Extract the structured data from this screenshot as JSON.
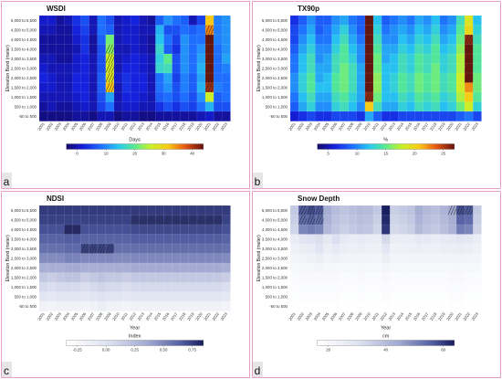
{
  "shared": {
    "ylabel": "Elevation Band (meter)",
    "xlabel": "Year",
    "years": [
      "2001",
      "2002",
      "2003",
      "2004",
      "2005",
      "2006",
      "2007",
      "2008",
      "2009",
      "2010",
      "2011",
      "2012",
      "2013",
      "2014",
      "2015",
      "2016",
      "2017",
      "2018",
      "2019",
      "2020",
      "2021",
      "2022",
      "2023"
    ],
    "bands": [
      "5,000 to 5,500",
      "4,500 to 5,000",
      "4,000 to 4,500",
      "3,500 to 4,000",
      "3,000 to 3,500",
      "2,500 to 3,000",
      "2,000 to 2,500",
      "1,500 to 2,000",
      "1,000 to 1,500",
      "500 to 1,000",
      "-50 to 500"
    ]
  },
  "chart_data": [
    {
      "panel": "a",
      "type": "heatmap",
      "title": "WSDI",
      "legend_title": "Days",
      "ticks": [
        "0",
        "10",
        "20",
        "30",
        "40"
      ],
      "range": [
        0,
        40
      ],
      "colormap": "ncl",
      "hatched": [
        [
          8,
          3
        ],
        [
          8,
          4
        ],
        [
          8,
          5
        ],
        [
          8,
          6
        ],
        [
          8,
          7
        ],
        [
          20,
          1
        ],
        [
          20,
          2
        ],
        [
          20,
          3
        ],
        [
          20,
          4
        ],
        [
          20,
          5
        ],
        [
          20,
          6
        ],
        [
          20,
          7
        ]
      ],
      "values": [
        [
          4,
          4,
          2,
          3,
          6,
          8,
          3,
          10,
          8,
          3,
          4,
          5,
          3,
          2,
          9,
          12,
          10,
          9,
          3,
          7,
          30,
          11,
          12
        ],
        [
          3,
          3,
          2,
          2,
          5,
          7,
          3,
          10,
          9,
          3,
          4,
          4,
          3,
          3,
          14,
          8,
          8,
          10,
          9,
          10,
          33,
          11,
          12
        ],
        [
          2,
          2,
          2,
          2,
          4,
          6,
          2,
          9,
          21,
          3,
          4,
          4,
          3,
          2,
          15,
          10,
          7,
          12,
          10,
          10,
          40,
          11,
          12
        ],
        [
          2,
          2,
          2,
          2,
          3,
          6,
          2,
          8,
          22,
          3,
          3,
          4,
          3,
          2,
          17,
          9,
          6,
          12,
          10,
          12,
          40,
          10,
          12
        ],
        [
          3,
          3,
          2,
          2,
          4,
          5,
          3,
          8,
          25,
          3,
          4,
          5,
          4,
          3,
          16,
          20,
          8,
          12,
          10,
          13,
          40,
          10,
          13
        ],
        [
          4,
          3,
          3,
          3,
          4,
          5,
          3,
          8,
          26,
          3,
          5,
          5,
          4,
          3,
          17,
          18,
          8,
          12,
          10,
          14,
          40,
          10,
          11
        ],
        [
          5,
          4,
          3,
          3,
          5,
          5,
          3,
          9,
          27,
          4,
          6,
          5,
          5,
          3,
          10,
          13,
          7,
          11,
          9,
          13,
          40,
          10,
          10
        ],
        [
          4,
          4,
          3,
          3,
          5,
          5,
          3,
          9,
          30,
          3,
          6,
          5,
          5,
          3,
          10,
          12,
          8,
          11,
          9,
          14,
          38,
          11,
          10
        ],
        [
          3,
          3,
          3,
          3,
          4,
          5,
          3,
          8,
          13,
          3,
          5,
          5,
          4,
          3,
          9,
          10,
          8,
          10,
          8,
          12,
          25,
          9,
          10
        ],
        [
          2,
          3,
          2,
          2,
          3,
          4,
          3,
          7,
          10,
          3,
          4,
          4,
          3,
          3,
          6,
          8,
          6,
          8,
          7,
          10,
          14,
          8,
          8
        ],
        [
          1,
          1,
          1,
          1,
          2,
          2,
          1,
          3,
          3,
          1,
          2,
          2,
          1,
          1,
          2,
          2,
          2,
          2,
          2,
          3,
          4,
          2,
          2
        ]
      ]
    },
    {
      "panel": "b",
      "type": "heatmap",
      "title": "TX90p",
      "legend_title": "%",
      "ticks": [
        "5",
        "10",
        "15",
        "20",
        "25"
      ],
      "range": [
        0,
        27
      ],
      "colormap": "ncl",
      "hatched": [
        [
          9,
          0
        ],
        [
          9,
          1
        ],
        [
          9,
          2
        ],
        [
          9,
          3
        ],
        [
          9,
          4
        ],
        [
          9,
          5
        ],
        [
          9,
          6
        ],
        [
          9,
          7
        ],
        [
          9,
          8
        ],
        [
          21,
          2
        ],
        [
          21,
          3
        ],
        [
          21,
          4
        ],
        [
          21,
          5
        ],
        [
          21,
          6
        ]
      ],
      "values": [
        [
          4,
          6,
          8,
          6,
          6,
          8,
          9,
          7,
          6,
          27,
          10,
          6,
          7,
          8,
          7,
          9,
          8,
          10,
          7,
          8,
          12,
          18,
          10
        ],
        [
          5,
          7,
          9,
          6,
          7,
          9,
          11,
          8,
          6,
          27,
          11,
          7,
          8,
          9,
          8,
          10,
          9,
          11,
          8,
          9,
          13,
          19,
          11
        ],
        [
          5,
          8,
          10,
          7,
          7,
          10,
          12,
          9,
          7,
          27,
          12,
          8,
          8,
          10,
          9,
          11,
          10,
          12,
          9,
          10,
          14,
          26,
          12
        ],
        [
          6,
          9,
          11,
          8,
          8,
          11,
          13,
          10,
          8,
          27,
          13,
          9,
          9,
          11,
          10,
          12,
          11,
          13,
          10,
          11,
          15,
          27,
          13
        ],
        [
          7,
          10,
          12,
          8,
          9,
          12,
          13,
          11,
          8,
          27,
          14,
          9,
          10,
          12,
          11,
          13,
          12,
          13,
          11,
          12,
          16,
          27,
          13
        ],
        [
          7,
          10,
          12,
          9,
          9,
          12,
          14,
          12,
          9,
          27,
          14,
          10,
          10,
          12,
          11,
          13,
          12,
          14,
          11,
          12,
          16,
          27,
          13
        ],
        [
          8,
          11,
          13,
          9,
          10,
          13,
          14,
          12,
          9,
          27,
          15,
          10,
          11,
          13,
          12,
          14,
          13,
          14,
          12,
          13,
          17,
          27,
          14
        ],
        [
          8,
          11,
          13,
          10,
          10,
          13,
          14,
          12,
          9,
          27,
          15,
          10,
          11,
          13,
          12,
          14,
          13,
          14,
          12,
          13,
          17,
          22,
          14
        ],
        [
          7,
          10,
          12,
          9,
          9,
          12,
          13,
          11,
          9,
          26,
          14,
          10,
          10,
          12,
          11,
          13,
          12,
          13,
          11,
          12,
          16,
          20,
          13
        ],
        [
          6,
          9,
          11,
          8,
          8,
          11,
          12,
          10,
          8,
          20,
          12,
          9,
          9,
          11,
          10,
          12,
          11,
          12,
          10,
          11,
          14,
          17,
          11
        ],
        [
          3,
          4,
          5,
          4,
          4,
          5,
          5,
          5,
          4,
          9,
          6,
          4,
          4,
          5,
          5,
          5,
          5,
          5,
          5,
          5,
          6,
          7,
          5
        ]
      ]
    },
    {
      "panel": "c",
      "type": "heatmap",
      "title": "NDSI",
      "legend_title": "Index",
      "ticks": [
        "-0.25",
        "0.00",
        "0.25",
        "0.50",
        "0.75"
      ],
      "range": [
        -0.35,
        0.8
      ],
      "colormap": "blues",
      "hatched": [
        [
          3,
          2
        ],
        [
          4,
          2
        ],
        [
          11,
          1
        ],
        [
          12,
          1
        ],
        [
          13,
          1
        ],
        [
          14,
          1
        ],
        [
          15,
          1
        ],
        [
          16,
          1
        ],
        [
          17,
          1
        ],
        [
          18,
          1
        ],
        [
          19,
          1
        ],
        [
          20,
          1
        ],
        [
          21,
          1
        ],
        [
          5,
          4
        ],
        [
          6,
          4
        ],
        [
          7,
          4
        ],
        [
          8,
          4
        ]
      ],
      "values": [
        [
          0.72,
          0.72,
          0.72,
          0.72,
          0.72,
          0.72,
          0.72,
          0.72,
          0.72,
          0.72,
          0.72,
          0.72,
          0.72,
          0.72,
          0.72,
          0.72,
          0.72,
          0.72,
          0.72,
          0.72,
          0.72,
          0.72,
          0.72
        ],
        [
          0.7,
          0.7,
          0.7,
          0.7,
          0.7,
          0.7,
          0.7,
          0.7,
          0.7,
          0.7,
          0.7,
          0.74,
          0.74,
          0.74,
          0.74,
          0.74,
          0.74,
          0.74,
          0.74,
          0.74,
          0.74,
          0.74,
          0.7
        ],
        [
          0.66,
          0.66,
          0.66,
          0.76,
          0.76,
          0.66,
          0.66,
          0.66,
          0.66,
          0.66,
          0.66,
          0.68,
          0.68,
          0.68,
          0.68,
          0.68,
          0.68,
          0.68,
          0.68,
          0.68,
          0.68,
          0.68,
          0.66
        ],
        [
          0.6,
          0.6,
          0.6,
          0.62,
          0.62,
          0.6,
          0.6,
          0.6,
          0.6,
          0.6,
          0.6,
          0.62,
          0.62,
          0.62,
          0.62,
          0.62,
          0.62,
          0.62,
          0.62,
          0.62,
          0.62,
          0.62,
          0.6
        ],
        [
          0.55,
          0.55,
          0.55,
          0.58,
          0.58,
          0.7,
          0.7,
          0.7,
          0.7,
          0.55,
          0.55,
          0.56,
          0.56,
          0.56,
          0.56,
          0.56,
          0.56,
          0.56,
          0.56,
          0.56,
          0.56,
          0.56,
          0.55
        ],
        [
          0.45,
          0.45,
          0.45,
          0.48,
          0.48,
          0.46,
          0.46,
          0.46,
          0.46,
          0.45,
          0.45,
          0.46,
          0.46,
          0.46,
          0.46,
          0.46,
          0.46,
          0.46,
          0.46,
          0.46,
          0.46,
          0.46,
          0.45
        ],
        [
          0.3,
          0.3,
          0.3,
          0.32,
          0.32,
          0.3,
          0.3,
          0.3,
          0.3,
          0.3,
          0.3,
          0.32,
          0.32,
          0.32,
          0.32,
          0.32,
          0.32,
          0.32,
          0.32,
          0.32,
          0.32,
          0.32,
          0.3
        ],
        [
          0.15,
          0.12,
          0.15,
          0.18,
          0.18,
          0.12,
          0.15,
          0.18,
          0.15,
          0.15,
          0.12,
          0.15,
          0.15,
          0.15,
          0.15,
          0.15,
          0.15,
          0.15,
          0.15,
          0.15,
          0.15,
          0.15,
          0.12
        ],
        [
          0.05,
          0.02,
          0.05,
          0.05,
          0.05,
          0.02,
          0.05,
          0.08,
          0.05,
          0.05,
          0.02,
          0.05,
          0.05,
          0.05,
          0.05,
          0.05,
          0.05,
          0.05,
          0.05,
          0.05,
          0.05,
          0.05,
          0.02
        ],
        [
          -0.05,
          -0.08,
          -0.05,
          -0.05,
          -0.05,
          -0.08,
          -0.05,
          -0.02,
          -0.05,
          -0.05,
          -0.08,
          -0.05,
          -0.05,
          -0.05,
          -0.05,
          -0.05,
          -0.05,
          -0.05,
          -0.05,
          -0.05,
          -0.05,
          -0.05,
          -0.08
        ],
        [
          -0.2,
          -0.22,
          -0.2,
          -0.2,
          -0.2,
          -0.22,
          -0.2,
          -0.15,
          -0.2,
          -0.2,
          -0.22,
          -0.2,
          -0.2,
          -0.2,
          -0.2,
          -0.2,
          -0.2,
          -0.2,
          -0.2,
          -0.2,
          -0.2,
          -0.2,
          -0.22
        ]
      ]
    },
    {
      "panel": "d",
      "type": "heatmap",
      "title": "Snow Depth",
      "legend_title": "cm",
      "ticks": [
        "20",
        "40",
        "60"
      ],
      "range": [
        0,
        70
      ],
      "colormap": "blues",
      "hatched": [
        [
          1,
          0
        ],
        [
          1,
          1
        ],
        [
          2,
          0
        ],
        [
          2,
          1
        ],
        [
          3,
          0
        ],
        [
          3,
          1
        ],
        [
          19,
          0
        ],
        [
          20,
          0
        ],
        [
          21,
          0
        ]
      ],
      "values": [
        [
          30,
          60,
          62,
          60,
          40,
          35,
          32,
          34,
          36,
          35,
          30,
          70,
          28,
          30,
          32,
          40,
          36,
          34,
          38,
          42,
          62,
          60,
          30
        ],
        [
          28,
          56,
          58,
          56,
          38,
          33,
          30,
          32,
          34,
          33,
          28,
          68,
          26,
          28,
          30,
          38,
          34,
          32,
          36,
          40,
          58,
          56,
          28
        ],
        [
          26,
          50,
          52,
          50,
          36,
          31,
          28,
          30,
          32,
          31,
          26,
          66,
          24,
          26,
          28,
          36,
          32,
          30,
          34,
          38,
          52,
          50,
          26
        ],
        [
          14,
          18,
          20,
          22,
          16,
          22,
          15,
          14,
          15,
          14,
          13,
          24,
          13,
          13,
          14,
          16,
          15,
          14,
          15,
          16,
          18,
          17,
          13
        ],
        [
          10,
          12,
          14,
          20,
          12,
          16,
          12,
          11,
          12,
          11,
          10,
          18,
          10,
          10,
          11,
          12,
          11,
          11,
          12,
          12,
          13,
          12,
          10
        ],
        [
          7,
          9,
          10,
          12,
          9,
          10,
          8,
          8,
          9,
          8,
          7,
          12,
          7,
          7,
          8,
          8,
          8,
          8,
          8,
          9,
          9,
          8,
          7
        ],
        [
          5,
          6,
          6,
          7,
          6,
          6,
          5,
          5,
          6,
          5,
          5,
          7,
          5,
          5,
          5,
          5,
          5,
          5,
          5,
          6,
          6,
          5,
          5
        ],
        [
          3,
          4,
          4,
          4,
          4,
          4,
          3,
          3,
          4,
          3,
          3,
          4,
          3,
          3,
          3,
          3,
          3,
          3,
          3,
          4,
          4,
          3,
          3
        ],
        [
          2,
          3,
          3,
          3,
          3,
          3,
          2,
          2,
          3,
          2,
          2,
          3,
          2,
          2,
          2,
          2,
          2,
          2,
          2,
          3,
          3,
          2,
          2
        ],
        [
          1,
          2,
          2,
          2,
          2,
          2,
          1,
          1,
          2,
          1,
          1,
          2,
          1,
          1,
          1,
          1,
          1,
          1,
          1,
          2,
          2,
          1,
          1
        ],
        [
          0,
          1,
          1,
          1,
          1,
          1,
          0,
          0,
          1,
          0,
          0,
          1,
          0,
          0,
          0,
          0,
          0,
          0,
          0,
          1,
          1,
          0,
          0
        ]
      ]
    }
  ]
}
